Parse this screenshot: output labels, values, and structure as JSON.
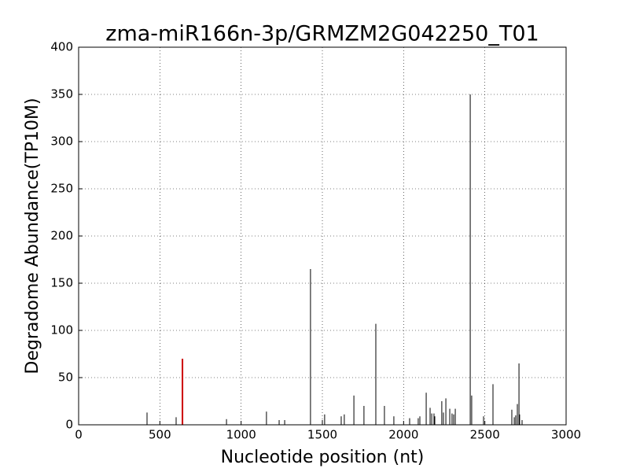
{
  "chart_data": {
    "type": "stem",
    "title": "zma-miR166n-3p/GRMZM2G042250_T01",
    "x_label": "Nucleotide position (nt)",
    "y_label": "Degradome Abundance(TP10M)",
    "xlim": [
      0,
      3000
    ],
    "ylim": [
      0,
      400
    ],
    "xticks": [
      0,
      500,
      1000,
      1500,
      2000,
      2500,
      3000
    ],
    "yticks": [
      0,
      50,
      100,
      150,
      200,
      250,
      300,
      350,
      400
    ],
    "grid": true,
    "series": [
      {
        "color": "#000000",
        "x": [
          421,
          600,
          910,
          1156,
          1234,
          1268,
          1427,
          1500,
          1514,
          1616,
          1635,
          1694,
          1756,
          1829,
          1882,
          1940,
          2037,
          2090,
          2100,
          2139,
          2163,
          2173,
          2187,
          2192,
          2235,
          2245,
          2260,
          2284,
          2298,
          2308,
          2318,
          2410,
          2419,
          2492,
          2550,
          2666,
          2681,
          2690,
          2700,
          2710,
          2714,
          2729
        ],
        "values": [
          13,
          8,
          6,
          14,
          5,
          5,
          165,
          5,
          11,
          9,
          11,
          31,
          20,
          107,
          20,
          9,
          7,
          7,
          9,
          34,
          18,
          12,
          12,
          9,
          25,
          13,
          28,
          17,
          12,
          11,
          17,
          350,
          31,
          9,
          43,
          16,
          8,
          10,
          22,
          65,
          11,
          5
        ]
      },
      {
        "color": "#cc0000",
        "x": [
          639
        ],
        "values": [
          70
        ]
      }
    ]
  }
}
